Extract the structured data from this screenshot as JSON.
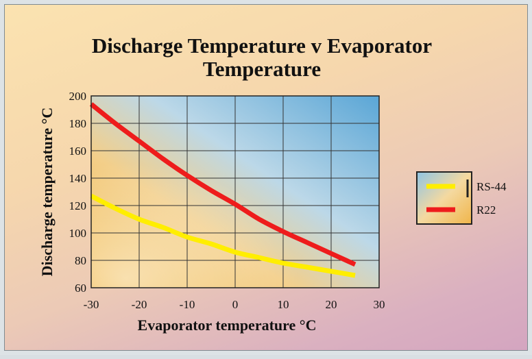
{
  "chart_data": {
    "type": "line",
    "title_lines": [
      "Discharge Temperature v Evaporator",
      "Temperature"
    ],
    "xlabel": "Evaporator temperature °C",
    "ylabel": "Discharge temperature °C",
    "xlim": [
      -30,
      30
    ],
    "ylim": [
      60,
      200
    ],
    "xticks": [
      -30,
      -20,
      -10,
      0,
      10,
      20,
      30
    ],
    "yticks": [
      60,
      80,
      100,
      120,
      140,
      160,
      180,
      200
    ],
    "grid": true,
    "legend_position": "right",
    "series": [
      {
        "name": "RS-44",
        "color": "#ffee00",
        "x": [
          -30,
          -25,
          -20,
          -15,
          -10,
          -5,
          0,
          5,
          10,
          15,
          20,
          25
        ],
        "y": [
          127,
          118,
          110,
          104,
          97,
          92,
          86,
          82,
          78,
          75,
          72,
          69
        ]
      },
      {
        "name": "R22",
        "color": "#ee1c1c",
        "x": [
          -30,
          -25,
          -20,
          -15,
          -10,
          -5,
          0,
          5,
          10,
          15,
          20,
          25
        ],
        "y": [
          194,
          180,
          167,
          154,
          142,
          131,
          121,
          110,
          101,
          93,
          85,
          77
        ]
      }
    ]
  }
}
